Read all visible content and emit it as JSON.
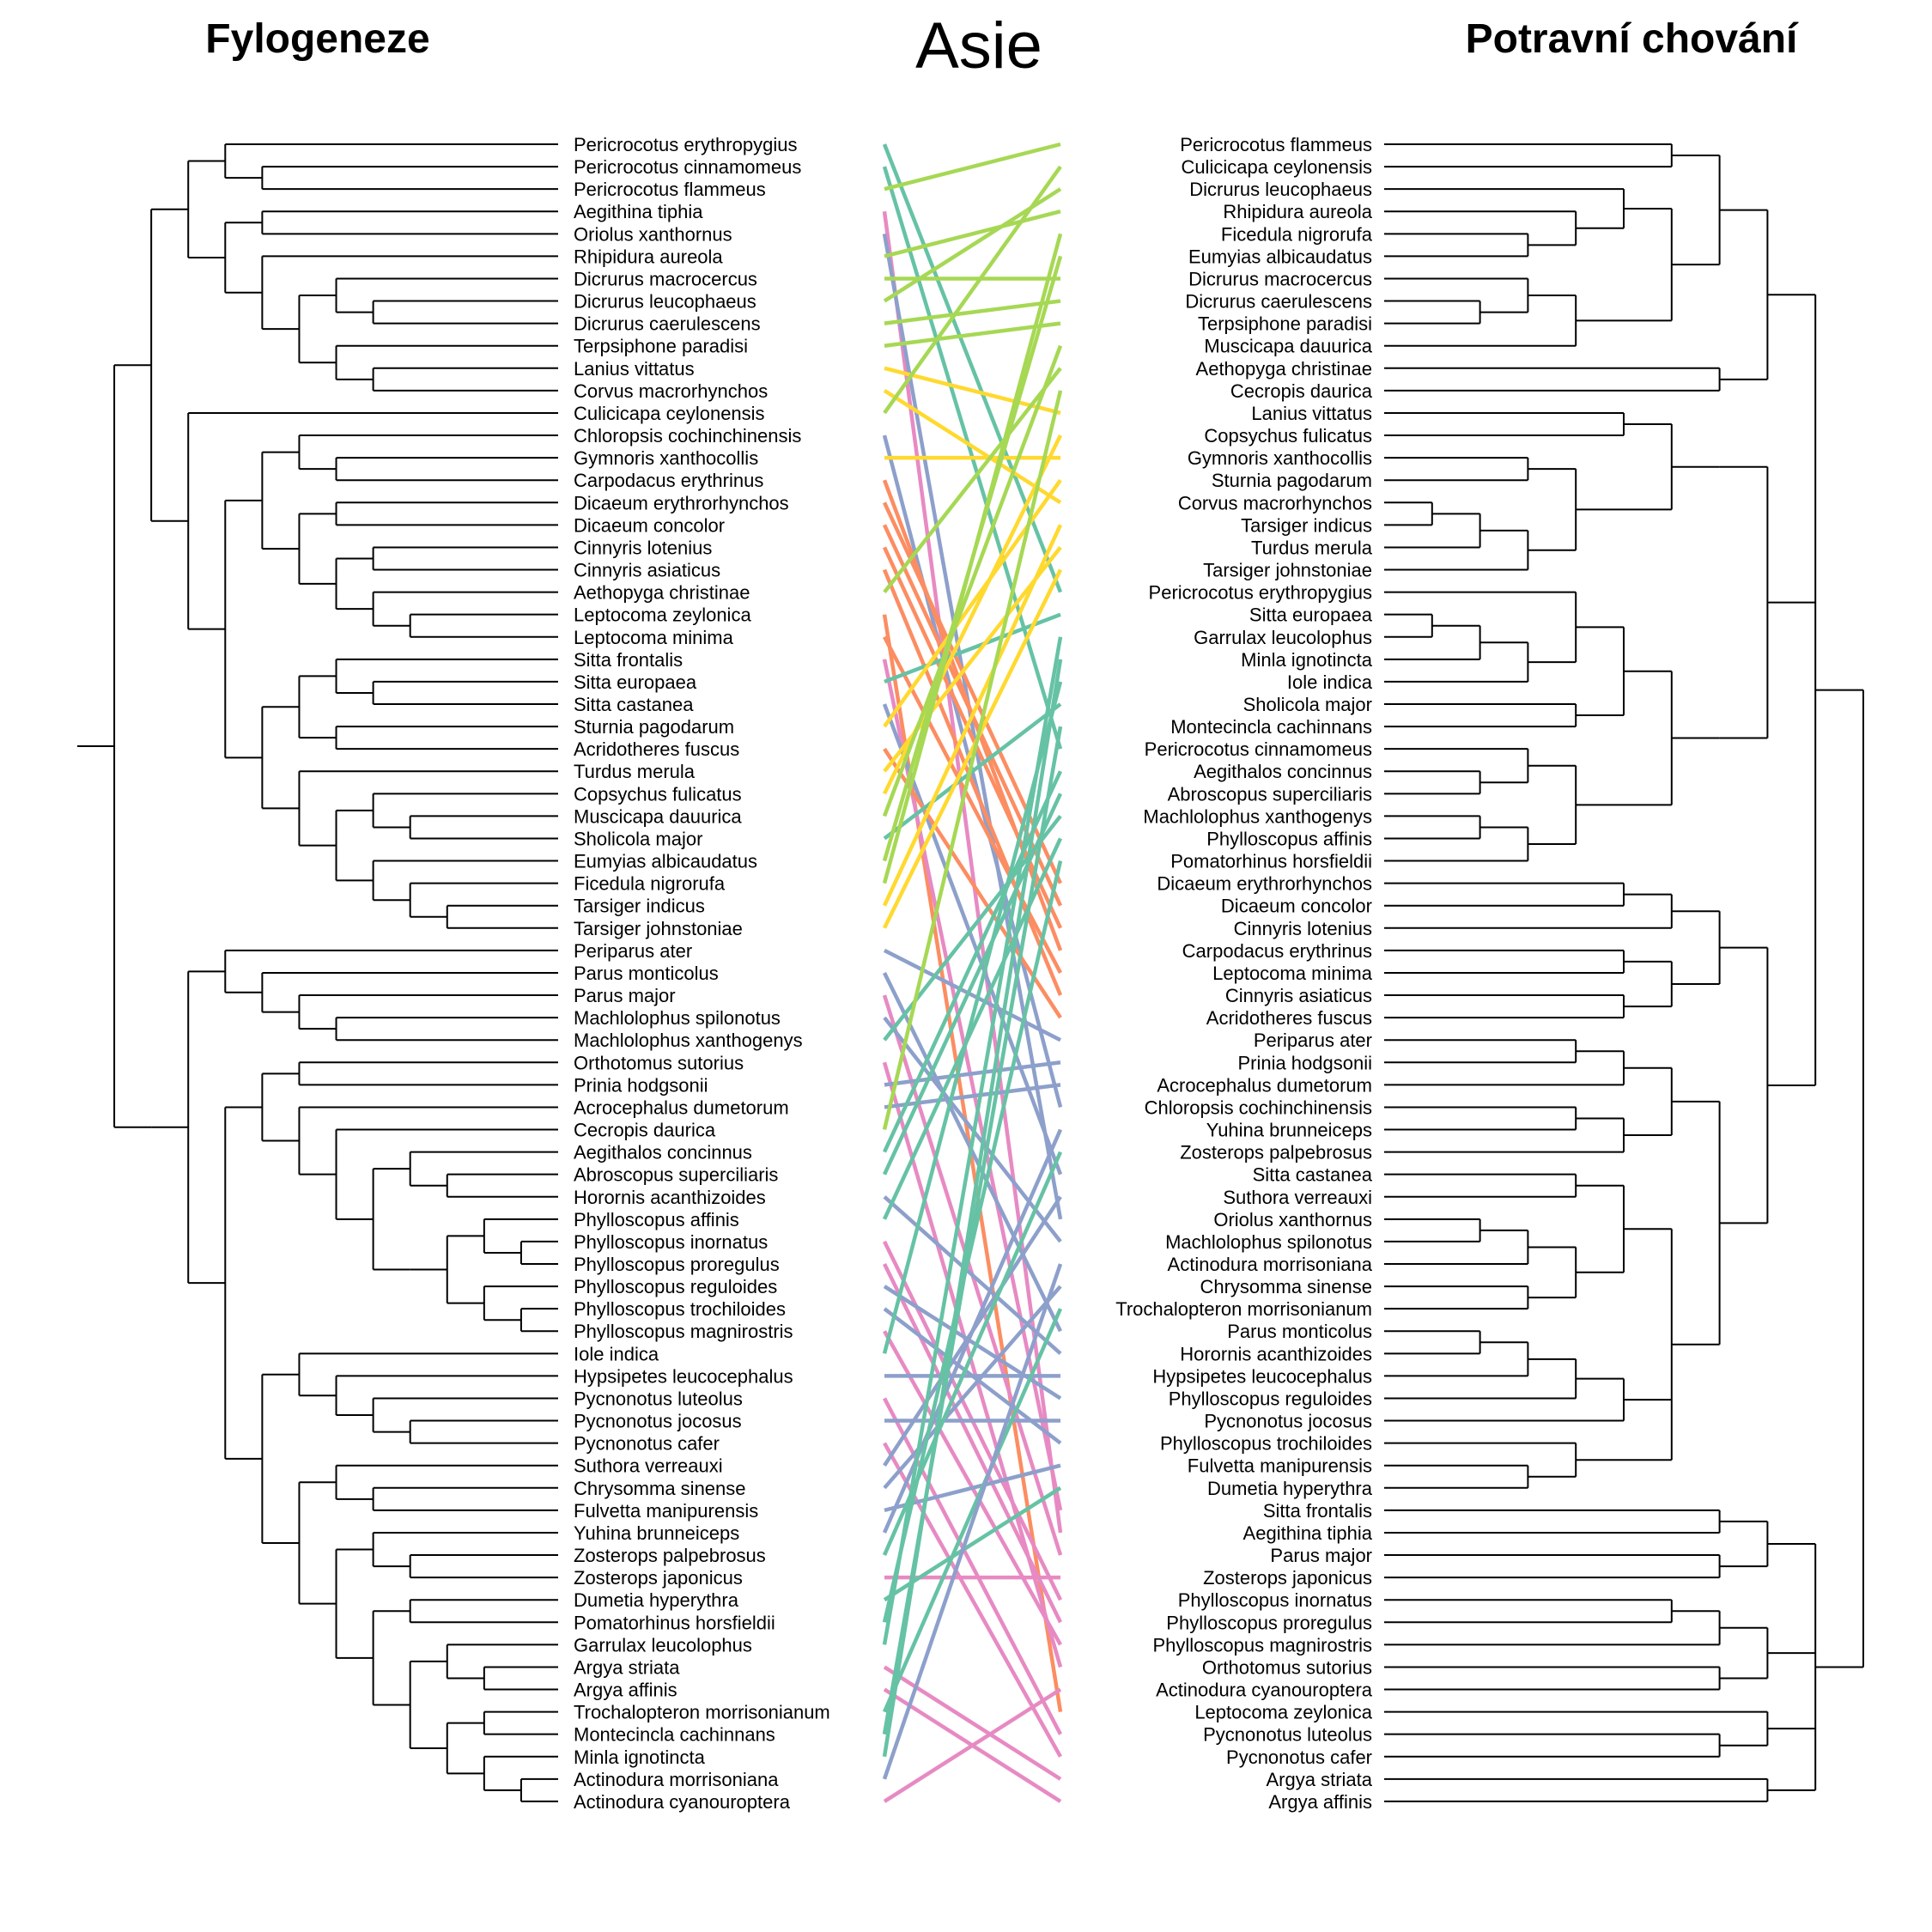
{
  "titles": {
    "left": "Fylogeneze",
    "center": "Asie",
    "right": "Potravní chování"
  },
  "colors": {
    "tree": "#000000",
    "groups": [
      "#66c2a5",
      "#fc8d62",
      "#8da0cb",
      "#e78ac3",
      "#a6d854",
      "#ffd92f"
    ]
  },
  "left_tree": {
    "taxa": [
      "Pericrocotus erythropygius",
      "Pericrocotus cinnamomeus",
      "Pericrocotus flammeus",
      "Aegithina tiphia",
      "Oriolus xanthornus",
      "Rhipidura aureola",
      "Dicrurus macrocercus",
      "Dicrurus leucophaeus",
      "Dicrurus caerulescens",
      "Terpsiphone paradisi",
      "Lanius vittatus",
      "Corvus macrorhynchos",
      "Culicicapa ceylonensis",
      "Chloropsis cochinchinensis",
      "Gymnoris xanthocollis",
      "Carpodacus erythrinus",
      "Dicaeum erythrorhynchos",
      "Dicaeum concolor",
      "Cinnyris lotenius",
      "Cinnyris asiaticus",
      "Aethopyga christinae",
      "Leptocoma zeylonica",
      "Leptocoma minima",
      "Sitta frontalis",
      "Sitta europaea",
      "Sitta castanea",
      "Sturnia pagodarum",
      "Acridotheres fuscus",
      "Turdus merula",
      "Copsychus fulicatus",
      "Muscicapa dauurica",
      "Sholicola major",
      "Eumyias albicaudatus",
      "Ficedula nigrorufa",
      "Tarsiger indicus",
      "Tarsiger johnstoniae",
      "Periparus ater",
      "Parus monticolus",
      "Parus major",
      "Machlolophus spilonotus",
      "Machlolophus xanthogenys",
      "Orthotomus sutorius",
      "Prinia hodgsonii",
      "Acrocephalus dumetorum",
      "Cecropis daurica",
      "Aegithalos concinnus",
      "Abroscopus superciliaris",
      "Horornis acanthizoides",
      "Phylloscopus affinis",
      "Phylloscopus inornatus",
      "Phylloscopus proregulus",
      "Phylloscopus reguloides",
      "Phylloscopus trochiloides",
      "Phylloscopus magnirostris",
      "Iole indica",
      "Hypsipetes leucocephalus",
      "Pycnonotus luteolus",
      "Pycnonotus jocosus",
      "Pycnonotus cafer",
      "Suthora verreauxi",
      "Chrysomma sinense",
      "Fulvetta manipurensis",
      "Yuhina brunneiceps",
      "Zosterops palpebrosus",
      "Zosterops japonicus",
      "Dumetia hyperythra",
      "Pomatorhinus horsfieldii",
      "Garrulax leucolophus",
      "Argya striata",
      "Argya affinis",
      "Trochalopteron morrisonianum",
      "Montecincla cachinnans",
      "Minla ignotincta",
      "Actinodura morrisoniana",
      "Actinodura cyanouroptera"
    ],
    "newick": "(((((0,(1,2)),((3,4),(5,((6,(7,8)),(9,(10,11)))))),(12,(((13,(14,15)),((16,17),((18,19),(20,(21,22))))),(((23,(24,25)),(26,27)),(28,((29,(30,31)),(32,(33,(34,35))))))))),(((36,(37,(38,(39,40)))),(((41,42),(43,(44,((45,(46,47)),(((48,(49,50)),(51,(52,53)))))))),((54,(55,(56,(57,58)))),((59,(60,61)),((62,(63,64)),((65,66),((67,(68,69)),((70,71),(72,(73,74)))))))))))))"
  },
  "right_tree": {
    "taxa": [
      "Pericrocotus flammeus",
      "Culicicapa ceylonensis",
      "Dicrurus leucophaeus",
      "Rhipidura aureola",
      "Ficedula nigrorufa",
      "Eumyias albicaudatus",
      "Dicrurus macrocercus",
      "Dicrurus caerulescens",
      "Terpsiphone paradisi",
      "Muscicapa dauurica",
      "Aethopyga christinae",
      "Cecropis daurica",
      "Lanius vittatus",
      "Copsychus fulicatus",
      "Gymnoris xanthocollis",
      "Sturnia pagodarum",
      "Corvus macrorhynchos",
      "Tarsiger indicus",
      "Turdus merula",
      "Tarsiger johnstoniae",
      "Pericrocotus erythropygius",
      "Sitta europaea",
      "Garrulax leucolophus",
      "Minla ignotincta",
      "Iole indica",
      "Sholicola major",
      "Montecincla cachinnans",
      "Pericrocotus cinnamomeus",
      "Aegithalos concinnus",
      "Abroscopus superciliaris",
      "Machlolophus xanthogenys",
      "Phylloscopus affinis",
      "Pomatorhinus horsfieldii",
      "Dicaeum erythrorhynchos",
      "Dicaeum concolor",
      "Cinnyris lotenius",
      "Carpodacus erythrinus",
      "Leptocoma minima",
      "Cinnyris asiaticus",
      "Acridotheres fuscus",
      "Periparus ater",
      "Prinia hodgsonii",
      "Acrocephalus dumetorum",
      "Chloropsis cochinchinensis",
      "Yuhina brunneiceps",
      "Zosterops palpebrosus",
      "Sitta castanea",
      "Suthora verreauxi",
      "Oriolus xanthornus",
      "Machlolophus spilonotus",
      "Actinodura morrisoniana",
      "Chrysomma sinense",
      "Trochalopteron morrisonianum",
      "Parus monticolus",
      "Horornis acanthizoides",
      "Hypsipetes leucocephalus",
      "Phylloscopus reguloides",
      "Pycnonotus jocosus",
      "Phylloscopus trochiloides",
      "Fulvetta manipurensis",
      "Dumetia hyperythra",
      "Sitta frontalis",
      "Aegithina tiphia",
      "Parus major",
      "Zosterops japonicus",
      "Phylloscopus inornatus",
      "Phylloscopus proregulus",
      "Phylloscopus magnirostris",
      "Orthotomus sutorius",
      "Actinodura cyanouroptera",
      "Leptocoma zeylonica",
      "Pycnonotus luteolus",
      "Pycnonotus cafer",
      "Argya striata",
      "Argya affinis"
    ],
    "newick": "(((((0,1),((2,(3,(4,5))),(((6,(7,8)),9)))),(10,11)),((((12,13),(((14,15),(((16,17),18),19))))),((((20,(((21,22),23),24)),(25,26)),(((27,(28,29)),((30,31),32)))))),((((33,34),35),((36,37),(38,39))),((((40,41),42),((43,44),45)),(((46,47),(((48,49),50),(51,52))),((((53,54),55),56),57),((58,(59,60))))))),(((61,62),(63,64)),(((65,66),67),(68,69)),(70,(71,72)),(73,74)))))"
  },
  "links": [
    {
      "l": "Pericrocotus erythropygius",
      "r": "Pericrocotus erythropygius",
      "g": 0
    },
    {
      "l": "Pericrocotus cinnamomeus",
      "r": "Pericrocotus cinnamomeus",
      "g": 0
    },
    {
      "l": "Pericrocotus flammeus",
      "r": "Pericrocotus flammeus",
      "g": 4
    },
    {
      "l": "Aegithina tiphia",
      "r": "Aegithina tiphia",
      "g": 3
    },
    {
      "l": "Oriolus xanthornus",
      "r": "Oriolus xanthornus",
      "g": 2
    },
    {
      "l": "Rhipidura aureola",
      "r": "Rhipidura aureola",
      "g": 4
    },
    {
      "l": "Dicrurus macrocercus",
      "r": "Dicrurus macrocercus",
      "g": 4
    },
    {
      "l": "Dicrurus leucophaeus",
      "r": "Dicrurus leucophaeus",
      "g": 4
    },
    {
      "l": "Dicrurus caerulescens",
      "r": "Dicrurus caerulescens",
      "g": 4
    },
    {
      "l": "Terpsiphone paradisi",
      "r": "Terpsiphone paradisi",
      "g": 4
    },
    {
      "l": "Lanius vittatus",
      "r": "Lanius vittatus",
      "g": 5
    },
    {
      "l": "Corvus macrorhynchos",
      "r": "Corvus macrorhynchos",
      "g": 5
    },
    {
      "l": "Culicicapa ceylonensis",
      "r": "Culicicapa ceylonensis",
      "g": 4
    },
    {
      "l": "Chloropsis cochinchinensis",
      "r": "Chloropsis cochinchinensis",
      "g": 2
    },
    {
      "l": "Gymnoris xanthocollis",
      "r": "Gymnoris xanthocollis",
      "g": 5
    },
    {
      "l": "Carpodacus erythrinus",
      "r": "Carpodacus erythrinus",
      "g": 1
    },
    {
      "l": "Dicaeum erythrorhynchos",
      "r": "Dicaeum erythrorhynchos",
      "g": 1
    },
    {
      "l": "Dicaeum concolor",
      "r": "Dicaeum concolor",
      "g": 1
    },
    {
      "l": "Cinnyris lotenius",
      "r": "Cinnyris lotenius",
      "g": 1
    },
    {
      "l": "Cinnyris asiaticus",
      "r": "Cinnyris asiaticus",
      "g": 1
    },
    {
      "l": "Aethopyga christinae",
      "r": "Aethopyga christinae",
      "g": 4
    },
    {
      "l": "Leptocoma zeylonica",
      "r": "Leptocoma zeylonica",
      "g": 1
    },
    {
      "l": "Leptocoma minima",
      "r": "Leptocoma minima",
      "g": 1
    },
    {
      "l": "Sitta frontalis",
      "r": "Sitta frontalis",
      "g": 3
    },
    {
      "l": "Sitta europaea",
      "r": "Sitta europaea",
      "g": 0
    },
    {
      "l": "Sitta castanea",
      "r": "Sitta castanea",
      "g": 2
    },
    {
      "l": "Sturnia pagodarum",
      "r": "Sturnia pagodarum",
      "g": 5
    },
    {
      "l": "Acridotheres fuscus",
      "r": "Acridotheres fuscus",
      "g": 1
    },
    {
      "l": "Turdus merula",
      "r": "Turdus merula",
      "g": 5
    },
    {
      "l": "Copsychus fulicatus",
      "r": "Copsychus fulicatus",
      "g": 5
    },
    {
      "l": "Muscicapa dauurica",
      "r": "Muscicapa dauurica",
      "g": 4
    },
    {
      "l": "Sholicola major",
      "r": "Sholicola major",
      "g": 0
    },
    {
      "l": "Eumyias albicaudatus",
      "r": "Eumyias albicaudatus",
      "g": 4
    },
    {
      "l": "Ficedula nigrorufa",
      "r": "Ficedula nigrorufa",
      "g": 4
    },
    {
      "l": "Tarsiger indicus",
      "r": "Tarsiger indicus",
      "g": 5
    },
    {
      "l": "Tarsiger johnstoniae",
      "r": "Tarsiger johnstoniae",
      "g": 5
    },
    {
      "l": "Periparus ater",
      "r": "Periparus ater",
      "g": 2
    },
    {
      "l": "Parus monticolus",
      "r": "Parus monticolus",
      "g": 2
    },
    {
      "l": "Parus major",
      "r": "Parus major",
      "g": 3
    },
    {
      "l": "Machlolophus spilonotus",
      "r": "Machlolophus spilonotus",
      "g": 2
    },
    {
      "l": "Machlolophus xanthogenys",
      "r": "Machlolophus xanthogenys",
      "g": 0
    },
    {
      "l": "Orthotomus sutorius",
      "r": "Orthotomus sutorius",
      "g": 3
    },
    {
      "l": "Prinia hodgsonii",
      "r": "Prinia hodgsonii",
      "g": 2
    },
    {
      "l": "Acrocephalus dumetorum",
      "r": "Acrocephalus dumetorum",
      "g": 2
    },
    {
      "l": "Cecropis daurica",
      "r": "Cecropis daurica",
      "g": 4
    },
    {
      "l": "Aegithalos concinnus",
      "r": "Aegithalos concinnus",
      "g": 0
    },
    {
      "l": "Abroscopus superciliaris",
      "r": "Abroscopus superciliaris",
      "g": 0
    },
    {
      "l": "Horornis acanthizoides",
      "r": "Horornis acanthizoides",
      "g": 2
    },
    {
      "l": "Phylloscopus affinis",
      "r": "Phylloscopus affinis",
      "g": 0
    },
    {
      "l": "Phylloscopus inornatus",
      "r": "Phylloscopus inornatus",
      "g": 3
    },
    {
      "l": "Phylloscopus proregulus",
      "r": "Phylloscopus proregulus",
      "g": 3
    },
    {
      "l": "Phylloscopus reguloides",
      "r": "Phylloscopus reguloides",
      "g": 2
    },
    {
      "l": "Phylloscopus trochiloides",
      "r": "Phylloscopus trochiloides",
      "g": 2
    },
    {
      "l": "Phylloscopus magnirostris",
      "r": "Phylloscopus magnirostris",
      "g": 3
    },
    {
      "l": "Iole indica",
      "r": "Iole indica",
      "g": 0
    },
    {
      "l": "Hypsipetes leucocephalus",
      "r": "Hypsipetes leucocephalus",
      "g": 2
    },
    {
      "l": "Pycnonotus luteolus",
      "r": "Pycnonotus luteolus",
      "g": 3
    },
    {
      "l": "Pycnonotus jocosus",
      "r": "Pycnonotus jocosus",
      "g": 2
    },
    {
      "l": "Pycnonotus cafer",
      "r": "Pycnonotus cafer",
      "g": 3
    },
    {
      "l": "Suthora verreauxi",
      "r": "Suthora verreauxi",
      "g": 2
    },
    {
      "l": "Chrysomma sinense",
      "r": "Chrysomma sinense",
      "g": 2
    },
    {
      "l": "Fulvetta manipurensis",
      "r": "Fulvetta manipurensis",
      "g": 2
    },
    {
      "l": "Yuhina brunneiceps",
      "r": "Yuhina brunneiceps",
      "g": 2
    },
    {
      "l": "Zosterops palpebrosus",
      "r": "Zosterops palpebrosus",
      "g": 0
    },
    {
      "l": "Zosterops japonicus",
      "r": "Zosterops japonicus",
      "g": 3
    },
    {
      "l": "Dumetia hyperythra",
      "r": "Dumetia hyperythra",
      "g": 0
    },
    {
      "l": "Pomatorhinus horsfieldii",
      "r": "Pomatorhinus horsfieldii",
      "g": 0
    },
    {
      "l": "Garrulax leucolophus",
      "r": "Garrulax leucolophus",
      "g": 0
    },
    {
      "l": "Argya striata",
      "r": "Argya striata",
      "g": 3
    },
    {
      "l": "Argya affinis",
      "r": "Argya affinis",
      "g": 3
    },
    {
      "l": "Trochalopteron morrisonianum",
      "r": "Trochalopteron morrisonianum",
      "g": 0
    },
    {
      "l": "Montecincla cachinnans",
      "r": "Montecincla cachinnans",
      "g": 0
    },
    {
      "l": "Minla ignotincta",
      "r": "Minla ignotincta",
      "g": 0
    },
    {
      "l": "Actinodura morrisoniana",
      "r": "Actinodura morrisoniana",
      "g": 2
    },
    {
      "l": "Actinodura cyanouroptera",
      "r": "Actinodura cyanouroptera",
      "g": 3
    }
  ]
}
